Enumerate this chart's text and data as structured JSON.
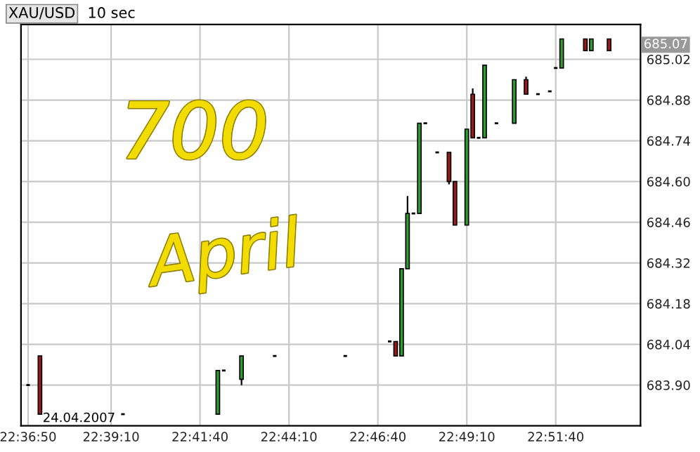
{
  "chart_data": {
    "type": "candlestick",
    "title": "XAU/USD",
    "subtitle": "10 sec",
    "x": [
      22.61389,
      22.61944,
      22.65833,
      22.70278,
      22.70556,
      22.71389,
      22.72944,
      22.7625,
      22.78333,
      22.78611,
      22.78889,
      22.79167,
      22.79444,
      22.79722,
      22.8,
      22.80556,
      22.81111,
      22.81389,
      22.81944,
      22.82222,
      22.825,
      22.82778,
      22.83333,
      22.84167,
      22.84722,
      22.85278,
      22.85833,
      22.86111,
      22.86389,
      22.875,
      22.87778,
      22.88611
    ],
    "ohlc": [
      [
        683.9,
        683.9,
        683.9,
        683.9
      ],
      [
        684.0,
        684.0,
        683.8,
        683.8
      ],
      [
        683.8,
        683.8,
        683.8,
        683.8
      ],
      [
        683.8,
        683.95,
        683.8,
        683.95
      ],
      [
        683.95,
        683.95,
        683.95,
        683.95
      ],
      [
        683.92,
        684.0,
        683.9,
        684.0
      ],
      [
        684.0,
        684.0,
        684.0,
        684.0
      ],
      [
        684.0,
        684.0,
        684.0,
        684.0
      ],
      [
        684.05,
        684.05,
        684.05,
        684.05
      ],
      [
        684.05,
        684.05,
        684.0,
        684.0
      ],
      [
        684.0,
        684.3,
        684.0,
        684.3
      ],
      [
        684.3,
        684.55,
        684.3,
        684.49
      ],
      [
        684.49,
        684.49,
        684.49,
        684.49
      ],
      [
        684.49,
        684.8,
        684.49,
        684.8
      ],
      [
        684.8,
        684.8,
        684.8,
        684.8
      ],
      [
        684.7,
        684.7,
        684.7,
        684.7
      ],
      [
        684.7,
        684.7,
        684.59,
        684.6
      ],
      [
        684.6,
        684.6,
        684.45,
        684.45
      ],
      [
        684.45,
        684.78,
        684.45,
        684.78
      ],
      [
        684.9,
        684.92,
        684.75,
        684.75
      ],
      [
        684.75,
        684.75,
        684.75,
        684.75
      ],
      [
        684.75,
        685.0,
        684.75,
        685.0
      ],
      [
        684.8,
        684.8,
        684.8,
        684.8
      ],
      [
        684.8,
        684.95,
        684.8,
        684.95
      ],
      [
        684.95,
        684.96,
        684.9,
        684.9
      ],
      [
        684.9,
        684.9,
        684.9,
        684.9
      ],
      [
        684.91,
        684.91,
        684.91,
        684.91
      ],
      [
        684.99,
        684.99,
        684.99,
        684.99
      ],
      [
        684.99,
        685.09,
        684.99,
        685.09
      ],
      [
        685.09,
        685.09,
        685.05,
        685.05
      ],
      [
        685.05,
        685.09,
        685.05,
        685.09
      ],
      [
        685.09,
        685.09,
        685.05,
        685.05
      ]
    ],
    "colors": [
      "#000000",
      "#a01818",
      "#000000",
      "#2e9e2e",
      "#000000",
      "#2e9e2e",
      "#000000",
      "#000000",
      "#000000",
      "#a01818",
      "#2e9e2e",
      "#2e9e2e",
      "#000000",
      "#2e9e2e",
      "#000000",
      "#000000",
      "#a01818",
      "#a01818",
      "#2e9e2e",
      "#a01818",
      "#000000",
      "#2e9e2e",
      "#000000",
      "#2e9e2e",
      "#a01818",
      "#000000",
      "#000000",
      "#000000",
      "#2e9e2e",
      "#a01818",
      "#2e9e2e",
      "#a01818"
    ],
    "xlim": [
      22.61056,
      22.90083
    ],
    "xticks": [
      {
        "value": 22.61389,
        "label": "22:36:50"
      },
      {
        "value": 22.65278,
        "label": "22:39:10"
      },
      {
        "value": 22.69444,
        "label": "22:41:40"
      },
      {
        "value": 22.73611,
        "label": "22:44:10"
      },
      {
        "value": 22.77778,
        "label": "22:46:40"
      },
      {
        "value": 22.81944,
        "label": "22:49:10"
      },
      {
        "value": 22.86111,
        "label": "22:51:40"
      }
    ],
    "ylim": [
      683.76,
      685.14
    ],
    "yticks": [
      {
        "value": 683.9,
        "label": "683.90"
      },
      {
        "value": 684.04,
        "label": "684.04"
      },
      {
        "value": 684.18,
        "label": "684.18"
      },
      {
        "value": 684.32,
        "label": "684.32"
      },
      {
        "value": 684.46,
        "label": "684.46"
      },
      {
        "value": 684.6,
        "label": "684.60"
      },
      {
        "value": 684.74,
        "label": "684.74"
      },
      {
        "value": 684.88,
        "label": "684.88"
      },
      {
        "value": 685.02,
        "label": "685.02"
      }
    ],
    "grid": true,
    "annotations": [
      "24.04.2007",
      "700",
      "April",
      {
        "text": "685.07",
        "y": 685.07
      }
    ]
  }
}
